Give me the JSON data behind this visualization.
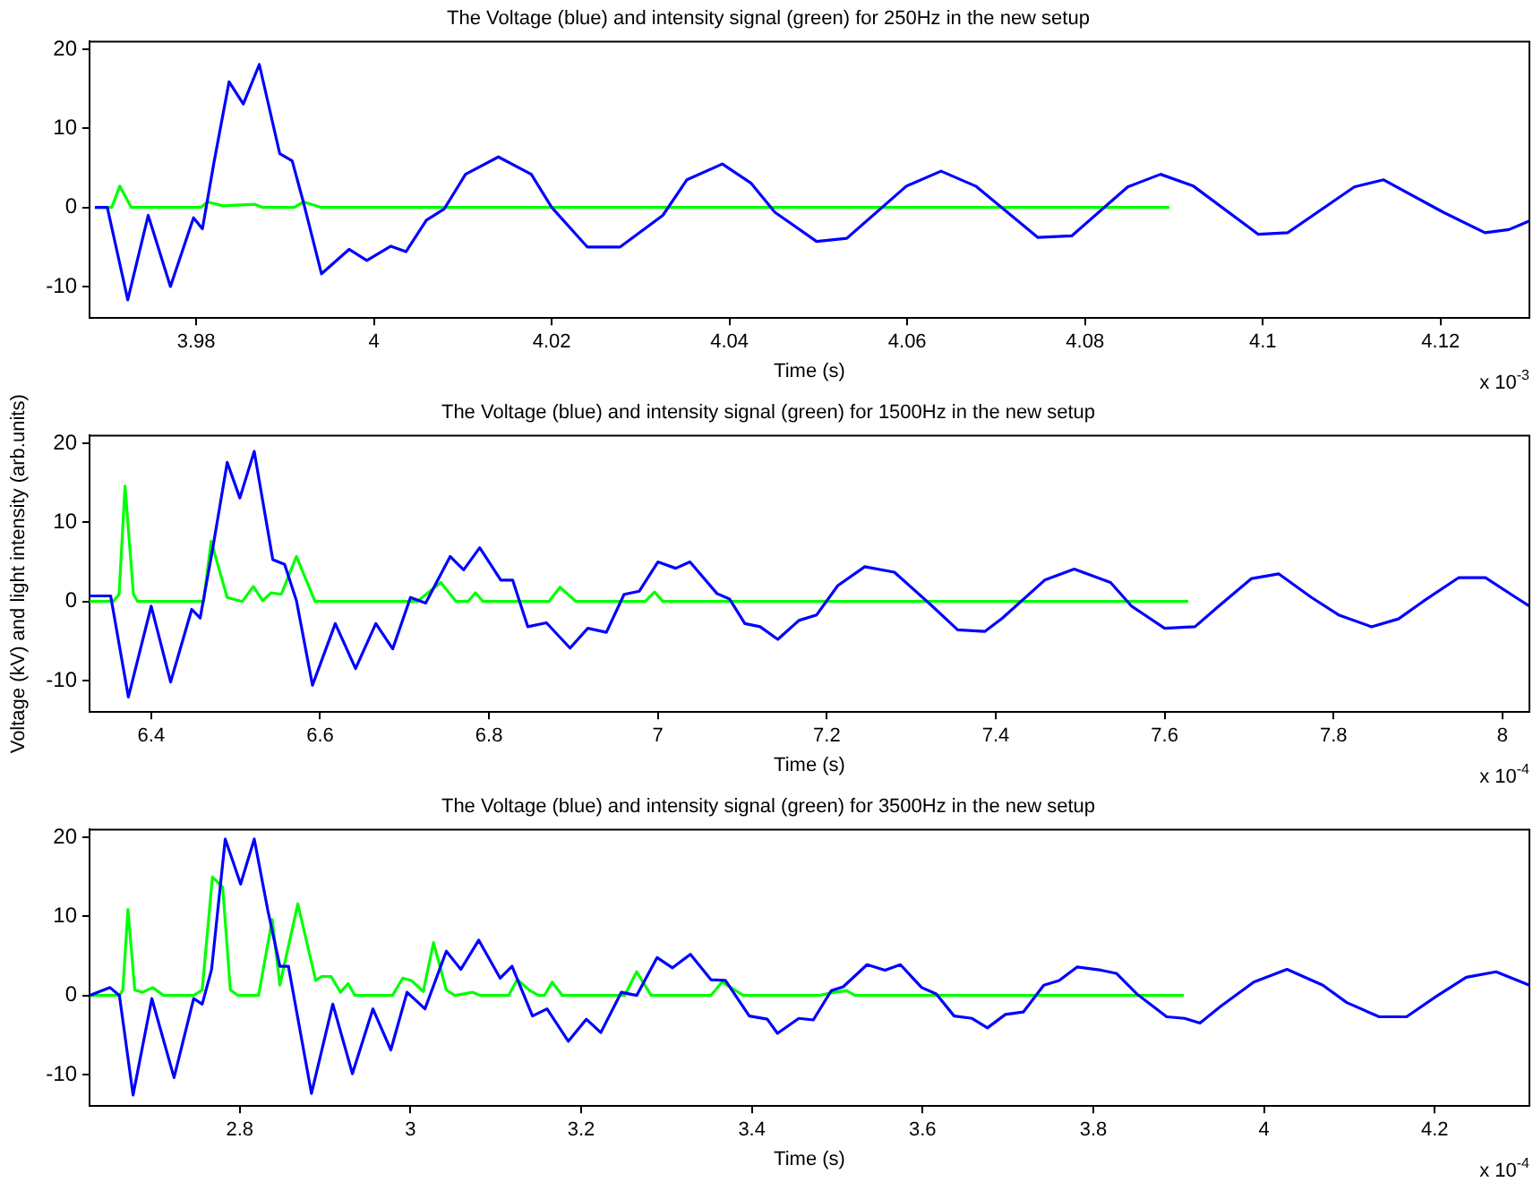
{
  "chart_data": [
    {
      "type": "line",
      "title": "The Voltage (blue) and intensity signal (green) for 250Hz in the new setup",
      "xlabel": "Time (s)",
      "annotations": [
        "x 10$^{-3}$"
      ],
      "xlim": [
        3.968,
        4.13
      ],
      "xticks": [
        3.98,
        4,
        4.02,
        4.04,
        4.06,
        4.08,
        4.1,
        4.12
      ],
      "ylim": [
        -14,
        21
      ],
      "yticks": [
        -10,
        0,
        10,
        20
      ],
      "grid": false,
      "legend": false,
      "series": [
        {
          "color": "#0000ff",
          "x": [
            3.9686,
            3.97,
            3.9723,
            3.9746,
            3.9771,
            3.9797,
            3.9807,
            3.982,
            3.9837,
            3.9853,
            3.9871,
            3.9894,
            3.9908,
            3.9921,
            3.9941,
            3.9972,
            3.9992,
            4.0019,
            4.0036,
            4.0059,
            4.0079,
            4.0103,
            4.014,
            4.0177,
            4.02,
            4.024,
            4.0277,
            4.0325,
            4.0352,
            4.0392,
            4.0424,
            4.0451,
            4.0498,
            4.0532,
            4.0599,
            4.0638,
            4.0677,
            4.0747,
            4.0785,
            4.0848,
            4.0885,
            4.0922,
            4.0995,
            4.1028,
            4.1103,
            4.1136,
            4.1203,
            4.125,
            4.1277,
            4.13
          ],
          "values": [
            0,
            0,
            -11.7,
            -1,
            -10,
            -1.3,
            -2.7,
            5.7,
            15.9,
            13.1,
            18.1,
            6.8,
            5.9,
            0.5,
            -8.4,
            -5.3,
            -6.7,
            -4.9,
            -5.6,
            -1.6,
            -0.2,
            4.2,
            6.4,
            4.2,
            0,
            -5,
            -5,
            -1,
            3.5,
            5.5,
            3.1,
            -0.6,
            -4.3,
            -3.9,
            2.7,
            4.6,
            2.7,
            -3.8,
            -3.6,
            2.6,
            4.2,
            2.7,
            -3.4,
            -3.2,
            2.6,
            3.5,
            -0.6,
            -3.2,
            -2.8,
            -1.7
          ]
        },
        {
          "color": "#00ff00",
          "x": [
            3.9686,
            3.9705,
            3.9714,
            3.9727,
            3.9805,
            3.9813,
            3.983,
            3.9866,
            3.9875,
            3.991,
            3.9921,
            3.9941,
            4.0895
          ],
          "values": [
            0,
            0,
            2.7,
            0,
            0,
            0.7,
            0.2,
            0.4,
            0,
            0,
            0.7,
            0,
            0
          ]
        }
      ]
    },
    {
      "type": "line",
      "title": "The Voltage (blue) and intensity signal (green) for 1500Hz in the new setup",
      "xlabel": "Time (s)",
      "ylabel": "Voltage (kV) and light intensity (arb.units)",
      "annotations": [
        "x 10$^{-4}$"
      ],
      "xlim": [
        6.327,
        8.032
      ],
      "xticks": [
        6.4,
        6.6,
        6.8,
        7,
        7.2,
        7.4,
        7.6,
        7.8,
        8
      ],
      "ylim": [
        -14,
        21
      ],
      "yticks": [
        -10,
        0,
        10,
        20
      ],
      "grid": false,
      "legend": false,
      "series": [
        {
          "color": "#0000ff",
          "x": [
            6.327,
            6.352,
            6.373,
            6.4,
            6.423,
            6.448,
            6.458,
            6.473,
            6.49,
            6.505,
            6.522,
            6.544,
            6.558,
            6.572,
            6.591,
            6.618,
            6.642,
            6.666,
            6.686,
            6.707,
            6.725,
            6.754,
            6.77,
            6.789,
            6.814,
            6.828,
            6.846,
            6.868,
            6.896,
            6.917,
            6.939,
            6.96,
            6.978,
            7,
            7.021,
            7.038,
            7.07,
            7.085,
            7.103,
            7.121,
            7.142,
            7.167,
            7.188,
            7.213,
            7.245,
            7.28,
            7.323,
            7.355,
            7.387,
            7.408,
            7.458,
            7.493,
            7.536,
            7.561,
            7.6,
            7.636,
            7.664,
            7.703,
            7.735,
            7.774,
            7.806,
            7.845,
            7.877,
            7.906,
            7.948,
            7.98,
            8.016,
            8.032
          ],
          "values": [
            0.7,
            0.7,
            -12.1,
            -0.6,
            -10.2,
            -1,
            -2.1,
            6.8,
            17.6,
            13.1,
            19,
            5.3,
            4.7,
            0.1,
            -10.6,
            -2.8,
            -8.5,
            -2.8,
            -6,
            0.5,
            -0.2,
            5.7,
            4,
            6.8,
            2.7,
            2.7,
            -3.2,
            -2.7,
            -5.9,
            -3.4,
            -3.9,
            0.9,
            1.3,
            5,
            4.2,
            5,
            1,
            0.3,
            -2.8,
            -3.2,
            -4.8,
            -2.4,
            -1.7,
            2,
            4.4,
            3.7,
            -0.4,
            -3.6,
            -3.8,
            -2.1,
            2.7,
            4.1,
            2.4,
            -0.6,
            -3.4,
            -3.2,
            -0.6,
            2.9,
            3.5,
            0.5,
            -1.7,
            -3.2,
            -2.2,
            0,
            3,
            3,
            0.5,
            -0.6
          ]
        },
        {
          "color": "#00ff00",
          "x": [
            6.327,
            6.355,
            6.362,
            6.369,
            6.379,
            6.384,
            6.462,
            6.471,
            6.49,
            6.508,
            6.521,
            6.532,
            6.542,
            6.554,
            6.572,
            6.594,
            6.715,
            6.743,
            6.761,
            6.775,
            6.784,
            6.793,
            6.871,
            6.884,
            6.903,
            6.985,
            6.996,
            7.006,
            7.628
          ],
          "values": [
            0,
            0,
            0.9,
            14.6,
            0.9,
            0,
            0,
            7.6,
            0.5,
            0,
            1.9,
            0.1,
            1.1,
            0.9,
            5.7,
            0,
            0,
            2.4,
            0,
            0,
            1.1,
            0,
            0,
            1.8,
            0,
            0,
            1.2,
            0,
            0
          ]
        }
      ]
    },
    {
      "type": "line",
      "title": "The Voltage (blue) and intensity signal (green) for 3500Hz in the new setup",
      "xlabel": "Time (s)",
      "annotations": [
        "x 10$^{-4}$"
      ],
      "xlim": [
        2.624,
        4.311
      ],
      "xticks": [
        2.8,
        3,
        3.2,
        3.4,
        3.6,
        3.8,
        4,
        4.2
      ],
      "ylim": [
        -14,
        21
      ],
      "yticks": [
        -10,
        0,
        10,
        20
      ],
      "grid": false,
      "legend": false,
      "series": [
        {
          "color": "#0000ff",
          "x": [
            2.624,
            2.648,
            2.659,
            2.675,
            2.697,
            2.723,
            2.746,
            2.756,
            2.767,
            2.783,
            2.801,
            2.817,
            2.833,
            2.847,
            2.857,
            2.884,
            2.909,
            2.932,
            2.956,
            2.977,
            2.996,
            3.017,
            3.042,
            3.059,
            3.08,
            3.105,
            3.119,
            3.143,
            3.16,
            3.185,
            3.206,
            3.223,
            3.247,
            3.265,
            3.289,
            3.307,
            3.328,
            3.352,
            3.369,
            3.397,
            3.418,
            3.43,
            3.455,
            3.472,
            3.493,
            3.507,
            3.535,
            3.556,
            3.574,
            3.599,
            3.616,
            3.637,
            3.658,
            3.676,
            3.697,
            3.718,
            3.742,
            3.76,
            3.781,
            3.809,
            3.827,
            3.851,
            3.886,
            3.907,
            3.925,
            3.949,
            3.988,
            4.027,
            4.069,
            4.097,
            4.135,
            4.167,
            4.202,
            4.237,
            4.272,
            4.311
          ],
          "values": [
            0,
            1,
            0,
            -12.6,
            -0.4,
            -10.4,
            -0.4,
            -1.1,
            3.3,
            19.8,
            14.1,
            19.8,
            10.7,
            3.7,
            3.7,
            -12.4,
            -1.1,
            -9.9,
            -1.7,
            -6.9,
            0.4,
            -1.7,
            5.6,
            3.3,
            7,
            2.2,
            3.7,
            -2.6,
            -1.7,
            -5.8,
            -3,
            -4.7,
            0.4,
            0,
            4.8,
            3.5,
            5.2,
            2,
            1.9,
            -2.6,
            -3,
            -4.8,
            -2.9,
            -3.1,
            0.6,
            1.1,
            3.9,
            3.2,
            3.9,
            1,
            0.2,
            -2.6,
            -2.9,
            -4.1,
            -2.4,
            -2.1,
            1.3,
            1.9,
            3.6,
            3.2,
            2.8,
            0.2,
            -2.7,
            -2.9,
            -3.5,
            -1.4,
            1.7,
            3.3,
            1.3,
            -0.9,
            -2.7,
            -2.7,
            -0.1,
            2.3,
            3,
            1.3
          ]
        },
        {
          "color": "#00ff00",
          "x": [
            2.624,
            2.659,
            2.663,
            2.669,
            2.677,
            2.686,
            2.698,
            2.711,
            2.746,
            2.756,
            2.768,
            2.78,
            2.789,
            2.798,
            2.822,
            2.838,
            2.847,
            2.868,
            2.889,
            2.896,
            2.907,
            2.918,
            2.927,
            2.935,
            2.979,
            2.991,
            3.001,
            3.015,
            3.027,
            3.042,
            3.052,
            3.073,
            3.082,
            3.115,
            3.125,
            3.139,
            3.15,
            3.157,
            3.166,
            3.178,
            3.251,
            3.265,
            3.282,
            3.352,
            3.365,
            3.38,
            3.39,
            3.479,
            3.497,
            3.511,
            3.521,
            3.906
          ],
          "values": [
            0,
            0,
            0.7,
            10.9,
            0.7,
            0.4,
            1,
            0,
            0,
            0.7,
            15,
            13.7,
            0.7,
            0,
            0,
            9.6,
            1.3,
            11.6,
            1.9,
            2.4,
            2.4,
            0.4,
            1.5,
            0,
            0,
            2.2,
            1.9,
            0.5,
            6.7,
            0.7,
            0,
            0.4,
            0,
            0,
            2,
            0.7,
            0,
            0,
            1.7,
            0,
            0,
            3,
            0,
            0,
            1.7,
            0.7,
            0,
            0,
            0.4,
            0.6,
            0,
            0
          ]
        }
      ]
    }
  ]
}
